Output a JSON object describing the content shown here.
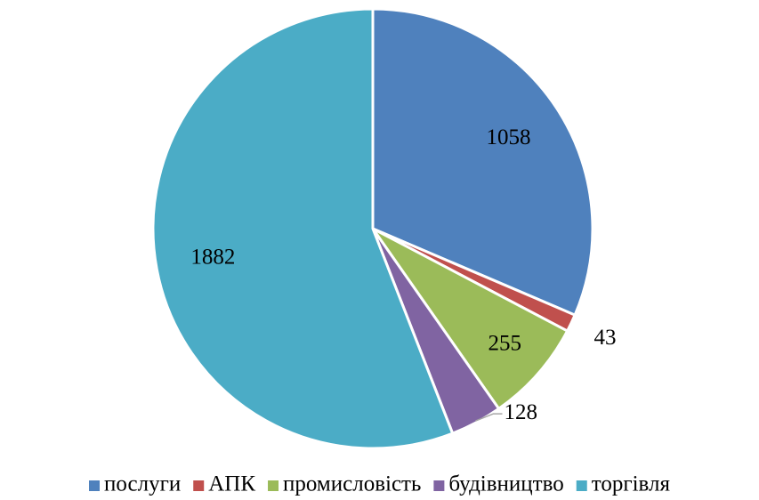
{
  "chart_data": {
    "type": "pie",
    "categories": [
      "послуги",
      "АПК",
      "промисловість",
      "будівництво",
      "торгівля"
    ],
    "values": [
      1058,
      43,
      255,
      128,
      1882
    ],
    "colors": [
      "#4f81bd",
      "#c0504d",
      "#9bbb59",
      "#8064a2",
      "#4bacc6"
    ],
    "legend": "bottom"
  }
}
